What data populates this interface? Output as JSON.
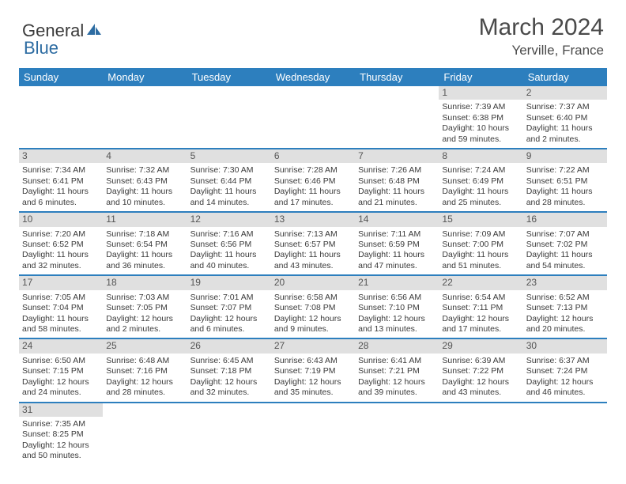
{
  "brand": {
    "text1": "General",
    "text2": "Blue"
  },
  "title": "March 2024",
  "location": "Yerville, France",
  "colors": {
    "header_bg": "#2d7fbe",
    "row_divider": "#2d7fbe",
    "daynum_bg": "#e0e0e0",
    "text": "#3a3a3a"
  },
  "weekdays": [
    "Sunday",
    "Monday",
    "Tuesday",
    "Wednesday",
    "Thursday",
    "Friday",
    "Saturday"
  ],
  "weeks": [
    [
      {
        "empty": true
      },
      {
        "empty": true
      },
      {
        "empty": true
      },
      {
        "empty": true
      },
      {
        "empty": true
      },
      {
        "num": "1",
        "sunrise": "Sunrise: 7:39 AM",
        "sunset": "Sunset: 6:38 PM",
        "daylight": "Daylight: 10 hours and 59 minutes."
      },
      {
        "num": "2",
        "sunrise": "Sunrise: 7:37 AM",
        "sunset": "Sunset: 6:40 PM",
        "daylight": "Daylight: 11 hours and 2 minutes."
      }
    ],
    [
      {
        "num": "3",
        "sunrise": "Sunrise: 7:34 AM",
        "sunset": "Sunset: 6:41 PM",
        "daylight": "Daylight: 11 hours and 6 minutes."
      },
      {
        "num": "4",
        "sunrise": "Sunrise: 7:32 AM",
        "sunset": "Sunset: 6:43 PM",
        "daylight": "Daylight: 11 hours and 10 minutes."
      },
      {
        "num": "5",
        "sunrise": "Sunrise: 7:30 AM",
        "sunset": "Sunset: 6:44 PM",
        "daylight": "Daylight: 11 hours and 14 minutes."
      },
      {
        "num": "6",
        "sunrise": "Sunrise: 7:28 AM",
        "sunset": "Sunset: 6:46 PM",
        "daylight": "Daylight: 11 hours and 17 minutes."
      },
      {
        "num": "7",
        "sunrise": "Sunrise: 7:26 AM",
        "sunset": "Sunset: 6:48 PM",
        "daylight": "Daylight: 11 hours and 21 minutes."
      },
      {
        "num": "8",
        "sunrise": "Sunrise: 7:24 AM",
        "sunset": "Sunset: 6:49 PM",
        "daylight": "Daylight: 11 hours and 25 minutes."
      },
      {
        "num": "9",
        "sunrise": "Sunrise: 7:22 AM",
        "sunset": "Sunset: 6:51 PM",
        "daylight": "Daylight: 11 hours and 28 minutes."
      }
    ],
    [
      {
        "num": "10",
        "sunrise": "Sunrise: 7:20 AM",
        "sunset": "Sunset: 6:52 PM",
        "daylight": "Daylight: 11 hours and 32 minutes."
      },
      {
        "num": "11",
        "sunrise": "Sunrise: 7:18 AM",
        "sunset": "Sunset: 6:54 PM",
        "daylight": "Daylight: 11 hours and 36 minutes."
      },
      {
        "num": "12",
        "sunrise": "Sunrise: 7:16 AM",
        "sunset": "Sunset: 6:56 PM",
        "daylight": "Daylight: 11 hours and 40 minutes."
      },
      {
        "num": "13",
        "sunrise": "Sunrise: 7:13 AM",
        "sunset": "Sunset: 6:57 PM",
        "daylight": "Daylight: 11 hours and 43 minutes."
      },
      {
        "num": "14",
        "sunrise": "Sunrise: 7:11 AM",
        "sunset": "Sunset: 6:59 PM",
        "daylight": "Daylight: 11 hours and 47 minutes."
      },
      {
        "num": "15",
        "sunrise": "Sunrise: 7:09 AM",
        "sunset": "Sunset: 7:00 PM",
        "daylight": "Daylight: 11 hours and 51 minutes."
      },
      {
        "num": "16",
        "sunrise": "Sunrise: 7:07 AM",
        "sunset": "Sunset: 7:02 PM",
        "daylight": "Daylight: 11 hours and 54 minutes."
      }
    ],
    [
      {
        "num": "17",
        "sunrise": "Sunrise: 7:05 AM",
        "sunset": "Sunset: 7:04 PM",
        "daylight": "Daylight: 11 hours and 58 minutes."
      },
      {
        "num": "18",
        "sunrise": "Sunrise: 7:03 AM",
        "sunset": "Sunset: 7:05 PM",
        "daylight": "Daylight: 12 hours and 2 minutes."
      },
      {
        "num": "19",
        "sunrise": "Sunrise: 7:01 AM",
        "sunset": "Sunset: 7:07 PM",
        "daylight": "Daylight: 12 hours and 6 minutes."
      },
      {
        "num": "20",
        "sunrise": "Sunrise: 6:58 AM",
        "sunset": "Sunset: 7:08 PM",
        "daylight": "Daylight: 12 hours and 9 minutes."
      },
      {
        "num": "21",
        "sunrise": "Sunrise: 6:56 AM",
        "sunset": "Sunset: 7:10 PM",
        "daylight": "Daylight: 12 hours and 13 minutes."
      },
      {
        "num": "22",
        "sunrise": "Sunrise: 6:54 AM",
        "sunset": "Sunset: 7:11 PM",
        "daylight": "Daylight: 12 hours and 17 minutes."
      },
      {
        "num": "23",
        "sunrise": "Sunrise: 6:52 AM",
        "sunset": "Sunset: 7:13 PM",
        "daylight": "Daylight: 12 hours and 20 minutes."
      }
    ],
    [
      {
        "num": "24",
        "sunrise": "Sunrise: 6:50 AM",
        "sunset": "Sunset: 7:15 PM",
        "daylight": "Daylight: 12 hours and 24 minutes."
      },
      {
        "num": "25",
        "sunrise": "Sunrise: 6:48 AM",
        "sunset": "Sunset: 7:16 PM",
        "daylight": "Daylight: 12 hours and 28 minutes."
      },
      {
        "num": "26",
        "sunrise": "Sunrise: 6:45 AM",
        "sunset": "Sunset: 7:18 PM",
        "daylight": "Daylight: 12 hours and 32 minutes."
      },
      {
        "num": "27",
        "sunrise": "Sunrise: 6:43 AM",
        "sunset": "Sunset: 7:19 PM",
        "daylight": "Daylight: 12 hours and 35 minutes."
      },
      {
        "num": "28",
        "sunrise": "Sunrise: 6:41 AM",
        "sunset": "Sunset: 7:21 PM",
        "daylight": "Daylight: 12 hours and 39 minutes."
      },
      {
        "num": "29",
        "sunrise": "Sunrise: 6:39 AM",
        "sunset": "Sunset: 7:22 PM",
        "daylight": "Daylight: 12 hours and 43 minutes."
      },
      {
        "num": "30",
        "sunrise": "Sunrise: 6:37 AM",
        "sunset": "Sunset: 7:24 PM",
        "daylight": "Daylight: 12 hours and 46 minutes."
      }
    ],
    [
      {
        "num": "31",
        "sunrise": "Sunrise: 7:35 AM",
        "sunset": "Sunset: 8:25 PM",
        "daylight": "Daylight: 12 hours and 50 minutes."
      },
      {
        "empty": true
      },
      {
        "empty": true
      },
      {
        "empty": true
      },
      {
        "empty": true
      },
      {
        "empty": true
      },
      {
        "empty": true
      }
    ]
  ]
}
